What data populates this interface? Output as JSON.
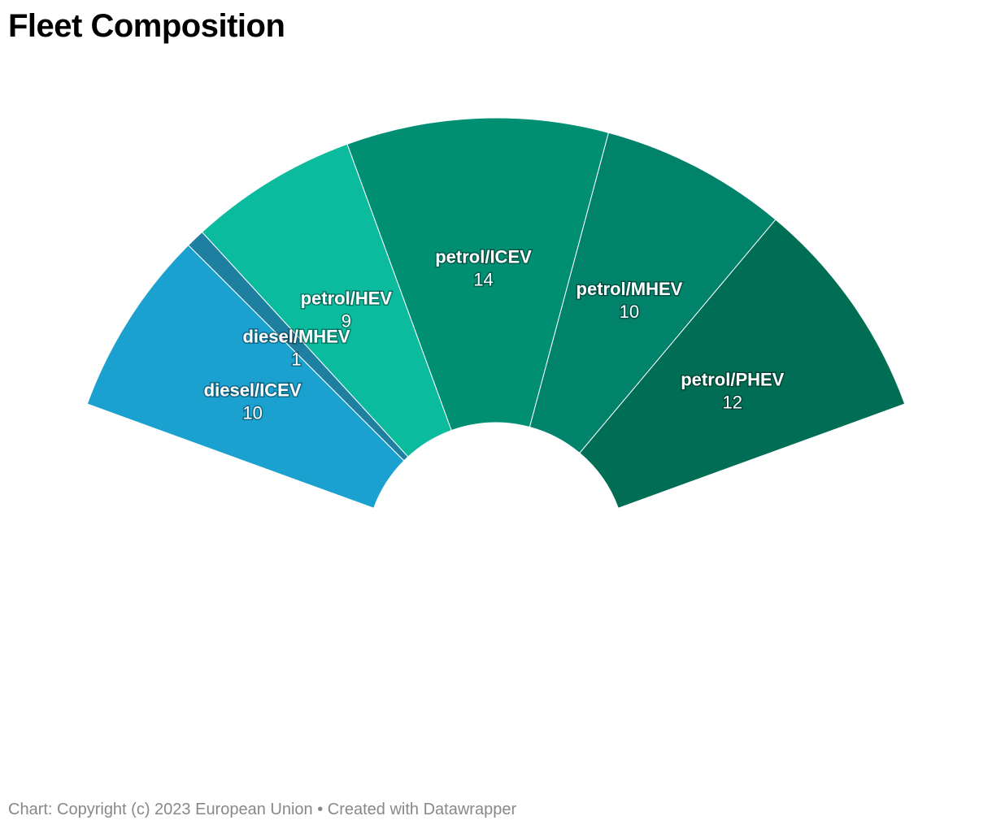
{
  "chart_data": {
    "type": "pie",
    "variant": "semi-donut",
    "title": "Fleet Composition",
    "categories": [
      "diesel/ICEV",
      "diesel/MHEV",
      "petrol/HEV",
      "petrol/ICEV",
      "petrol/MHEV",
      "petrol/PHEV"
    ],
    "values": [
      10,
      1,
      9,
      14,
      10,
      12
    ],
    "colors": [
      "#1aa1cf",
      "#1f7fa0",
      "#0bbb9e",
      "#018f73",
      "#00826b",
      "#006e55"
    ]
  },
  "footer": {
    "text": "Chart: Copyright (c) 2023 European Union • Created with Datawrapper"
  }
}
